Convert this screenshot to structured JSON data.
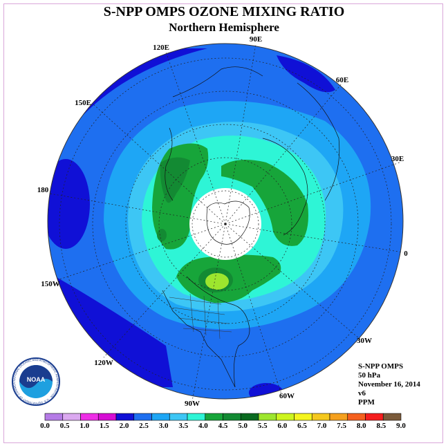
{
  "title": "S-NPP OMPS OZONE MIXING RATIO",
  "subtitle": "Northern Hemisphere",
  "longitude_labels": [
    {
      "name": "90E"
    },
    {
      "name": "60E"
    },
    {
      "name": "30E"
    },
    {
      "name": "0"
    },
    {
      "name": "30W"
    },
    {
      "name": "60W"
    },
    {
      "name": "90W"
    },
    {
      "name": "120W"
    },
    {
      "name": "150W"
    },
    {
      "name": "180"
    },
    {
      "name": "150E"
    },
    {
      "name": "120E"
    }
  ],
  "info": {
    "instrument": "S-NPP OMPS",
    "pressure": "50 hPa",
    "date": "November 16, 2014",
    "version": "v6",
    "units": "PPM"
  },
  "logo": {
    "text": "NOAA",
    "ring_text": "NATIONAL OCEANIC AND ATMOSPHERIC ADMINISTRATION · U.S. DEPARTMENT OF COMMERCE ·"
  },
  "colorbar": {
    "labels": [
      "0.0",
      "0.5",
      "1.0",
      "1.5",
      "2.0",
      "2.5",
      "3.0",
      "3.5",
      "4.0",
      "4.5",
      "5.0",
      "5.5",
      "6.0",
      "6.5",
      "7.0",
      "7.5",
      "8.0",
      "8.5",
      "9.0"
    ],
    "colors": [
      "#b57be6",
      "#dba9f0",
      "#ee2ee6",
      "#d60ed4",
      "#1010d6",
      "#1e6ff0",
      "#1ea6f5",
      "#3dc6f5",
      "#2ef5d6",
      "#17a53a",
      "#138a33",
      "#0a6a20",
      "#9de62e",
      "#cdf51e",
      "#f5f51e",
      "#f5c81e",
      "#f5a01e",
      "#f5601e",
      "#f51e1e",
      "#7a5a3a"
    ]
  },
  "map_colors": {
    "band_2_0": "#1010d6",
    "band_2_5": "#1e6ff0",
    "band_3_0": "#1ea6f5",
    "band_3_5": "#3dc6f5",
    "band_4_0": "#2ef5d6",
    "band_4_5": "#17a53a",
    "band_5_0": "#138a33",
    "band_5_5": "#9de62e",
    "no_data": "#ffffff"
  }
}
